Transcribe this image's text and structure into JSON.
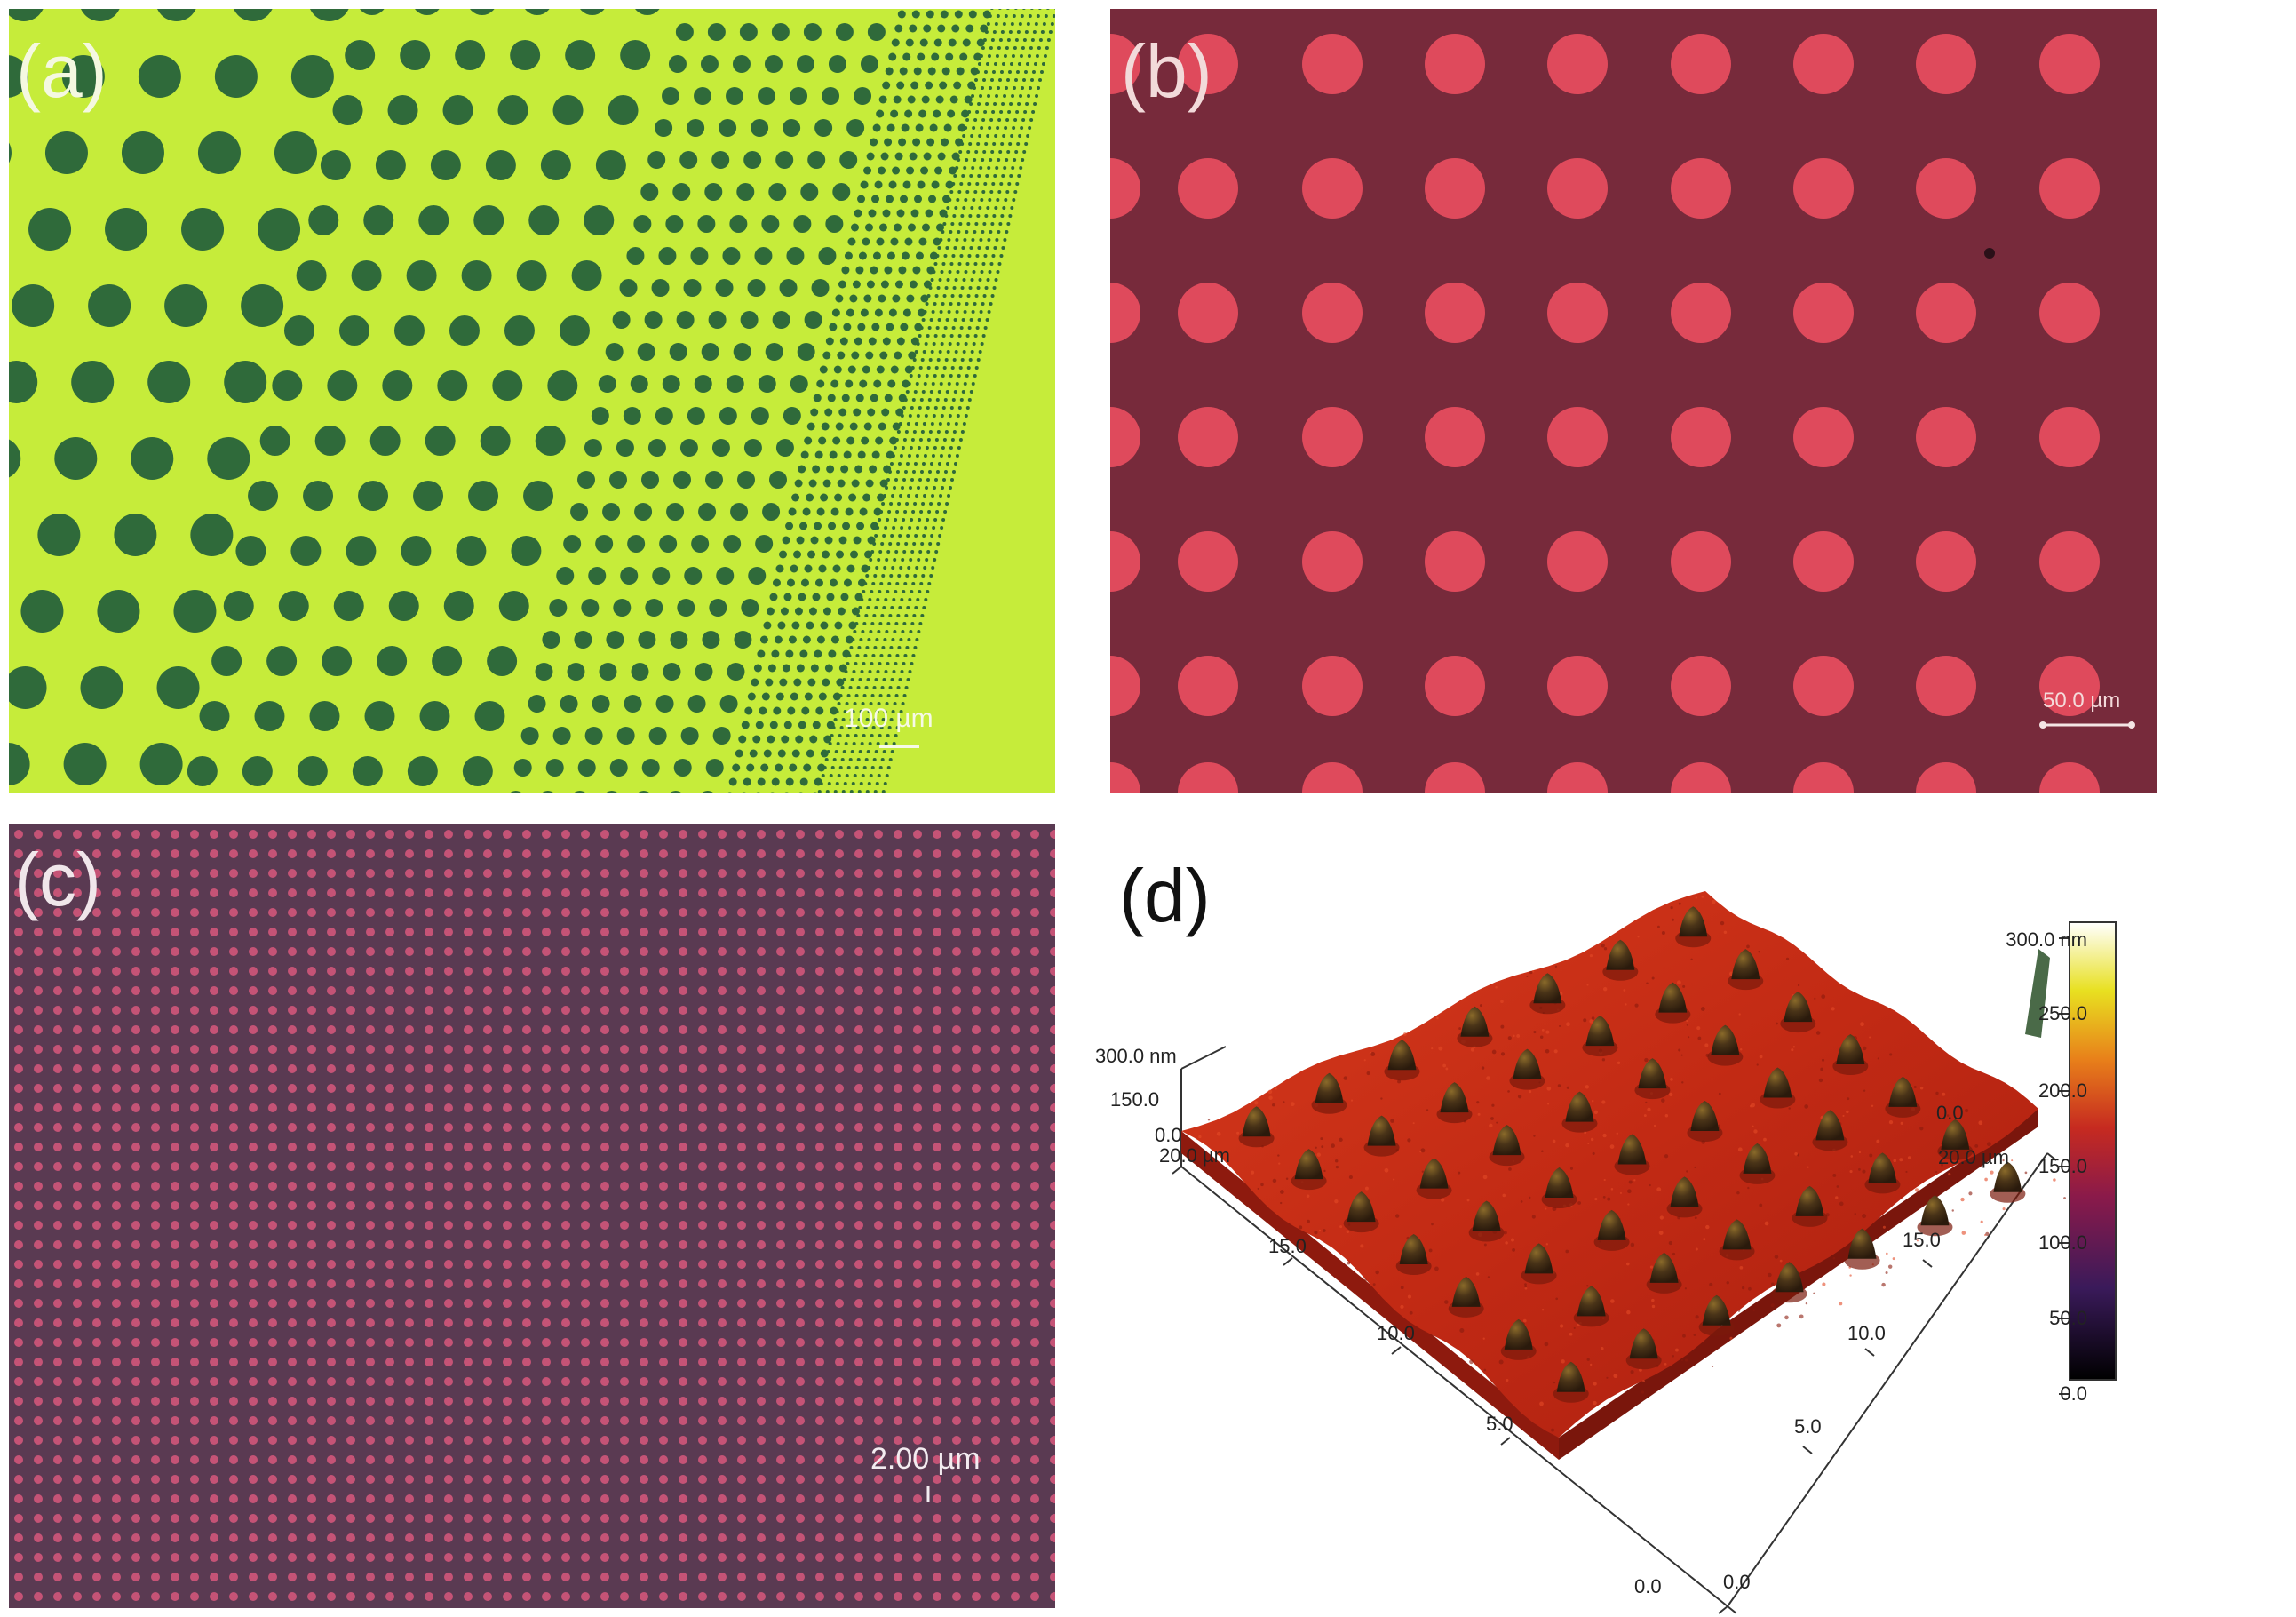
{
  "panels": {
    "a": {
      "label": "(a)",
      "scale_bar": "100 µm",
      "colors": {
        "background": "#c6ec3a",
        "dots": "#2f6a3a"
      }
    },
    "b": {
      "label": "(b)",
      "scale_bar": "50.0 µm",
      "colors": {
        "background": "#772a3b",
        "dots": "#df4a5c"
      }
    },
    "c": {
      "label": "(c)",
      "scale_bar": "2.00 µm",
      "colors": {
        "background": "#5a3a52",
        "dots": "#d8587c"
      }
    },
    "d": {
      "label": "(d)",
      "z_axis": {
        "top": "300.0 nm",
        "mid": "150.0",
        "bottom": "0.0"
      },
      "left_axis": [
        "20.0 µm",
        "15.0",
        "10.0",
        "5.0",
        "0.0"
      ],
      "right_axis": [
        "0.0",
        "20.0 µm",
        "15.0",
        "10.0",
        "5.0",
        "0.0"
      ],
      "colorbar": [
        "300.0 nm",
        "250.0",
        "200.0",
        "150.0",
        "100.0",
        "50.0",
        "0.0"
      ],
      "colors": {
        "surface": "#c72a15",
        "pillars": "#4a3418"
      }
    }
  }
}
